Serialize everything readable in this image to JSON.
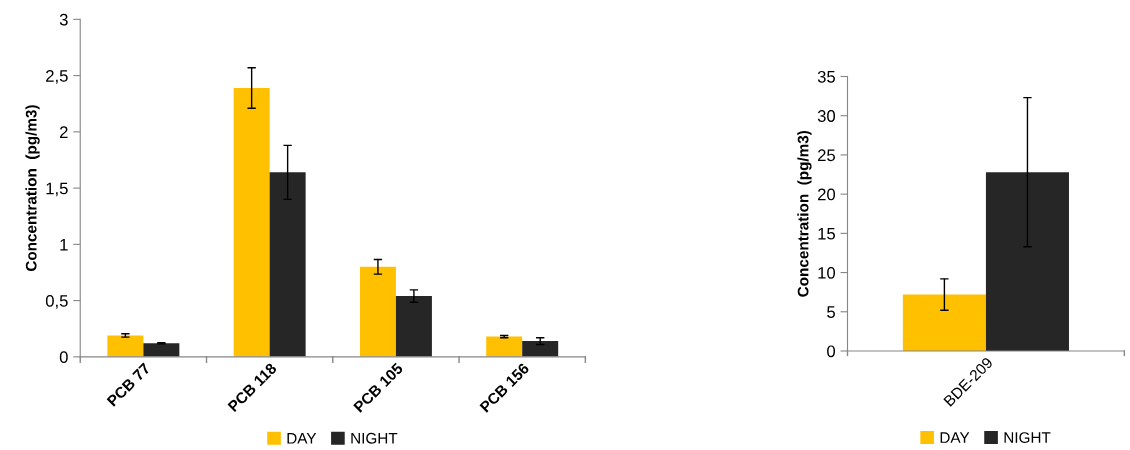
{
  "chart_data": [
    {
      "type": "bar",
      "ylabel": "Concentration  (pg/m3)",
      "categories": [
        "PCB 77",
        "PCB 118",
        "PCB 105",
        "PCB 156"
      ],
      "series": [
        {
          "name": "DAY",
          "color": "#ffc000",
          "values": [
            0.19,
            2.39,
            0.8,
            0.18
          ],
          "errors": [
            0.015,
            0.18,
            0.065,
            0.01
          ]
        },
        {
          "name": "NIGHT",
          "color": "#262626",
          "values": [
            0.12,
            1.64,
            0.54,
            0.14
          ],
          "errors": [
            0.005,
            0.24,
            0.055,
            0.03
          ]
        }
      ],
      "ylim": [
        0,
        3
      ],
      "yticks": [
        0,
        {
          "value": 0.5,
          "label": "0,5"
        },
        1,
        {
          "value": 1.5,
          "label": "1,5"
        },
        2,
        {
          "value": 2.5,
          "label": "2,5"
        },
        3
      ],
      "grid": false,
      "legend": "bottom"
    },
    {
      "type": "bar",
      "ylabel": "Concentration  (pg/m3)",
      "categories": [
        "BDE-209"
      ],
      "series": [
        {
          "name": "DAY",
          "color": "#ffc000",
          "values": [
            7.2
          ],
          "errors": [
            2.0
          ]
        },
        {
          "name": "NIGHT",
          "color": "#262626",
          "values": [
            22.8
          ],
          "errors": [
            9.5
          ]
        }
      ],
      "ylim": [
        0,
        35
      ],
      "yticks": [
        0,
        5,
        10,
        15,
        20,
        25,
        30,
        35
      ],
      "grid": false,
      "legend": "bottom"
    }
  ]
}
